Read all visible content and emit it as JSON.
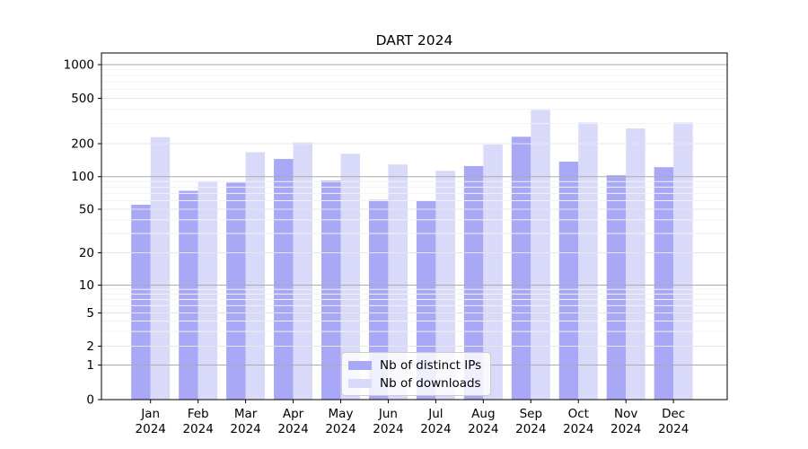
{
  "chart_data": {
    "type": "bar",
    "title": "DART 2024",
    "scale": "symlog",
    "grid": true,
    "legend_position": "lower center",
    "xlabel": "",
    "ylabel": "",
    "ylim": [
      0,
      1100
    ],
    "yticks": [
      0,
      1,
      2,
      5,
      10,
      20,
      50,
      100,
      200,
      500,
      1000
    ],
    "categories": [
      "Jan\n2024",
      "Feb\n2024",
      "Mar\n2024",
      "Apr\n2024",
      "May\n2024",
      "Jun\n2024",
      "Jul\n2024",
      "Aug\n2024",
      "Sep\n2024",
      "Oct\n2024",
      "Nov\n2024",
      "Dec\n2024"
    ],
    "series": [
      {
        "name": "Nb of distinct IPs",
        "color": "#a8a8f6",
        "values": [
          55,
          74,
          88,
          145,
          92,
          61,
          60,
          125,
          230,
          137,
          103,
          122
        ]
      },
      {
        "name": "Nb of downloads",
        "color": "#d9d9f9",
        "values": [
          228,
          91,
          167,
          205,
          162,
          129,
          113,
          196,
          395,
          307,
          272,
          307
        ]
      }
    ]
  }
}
